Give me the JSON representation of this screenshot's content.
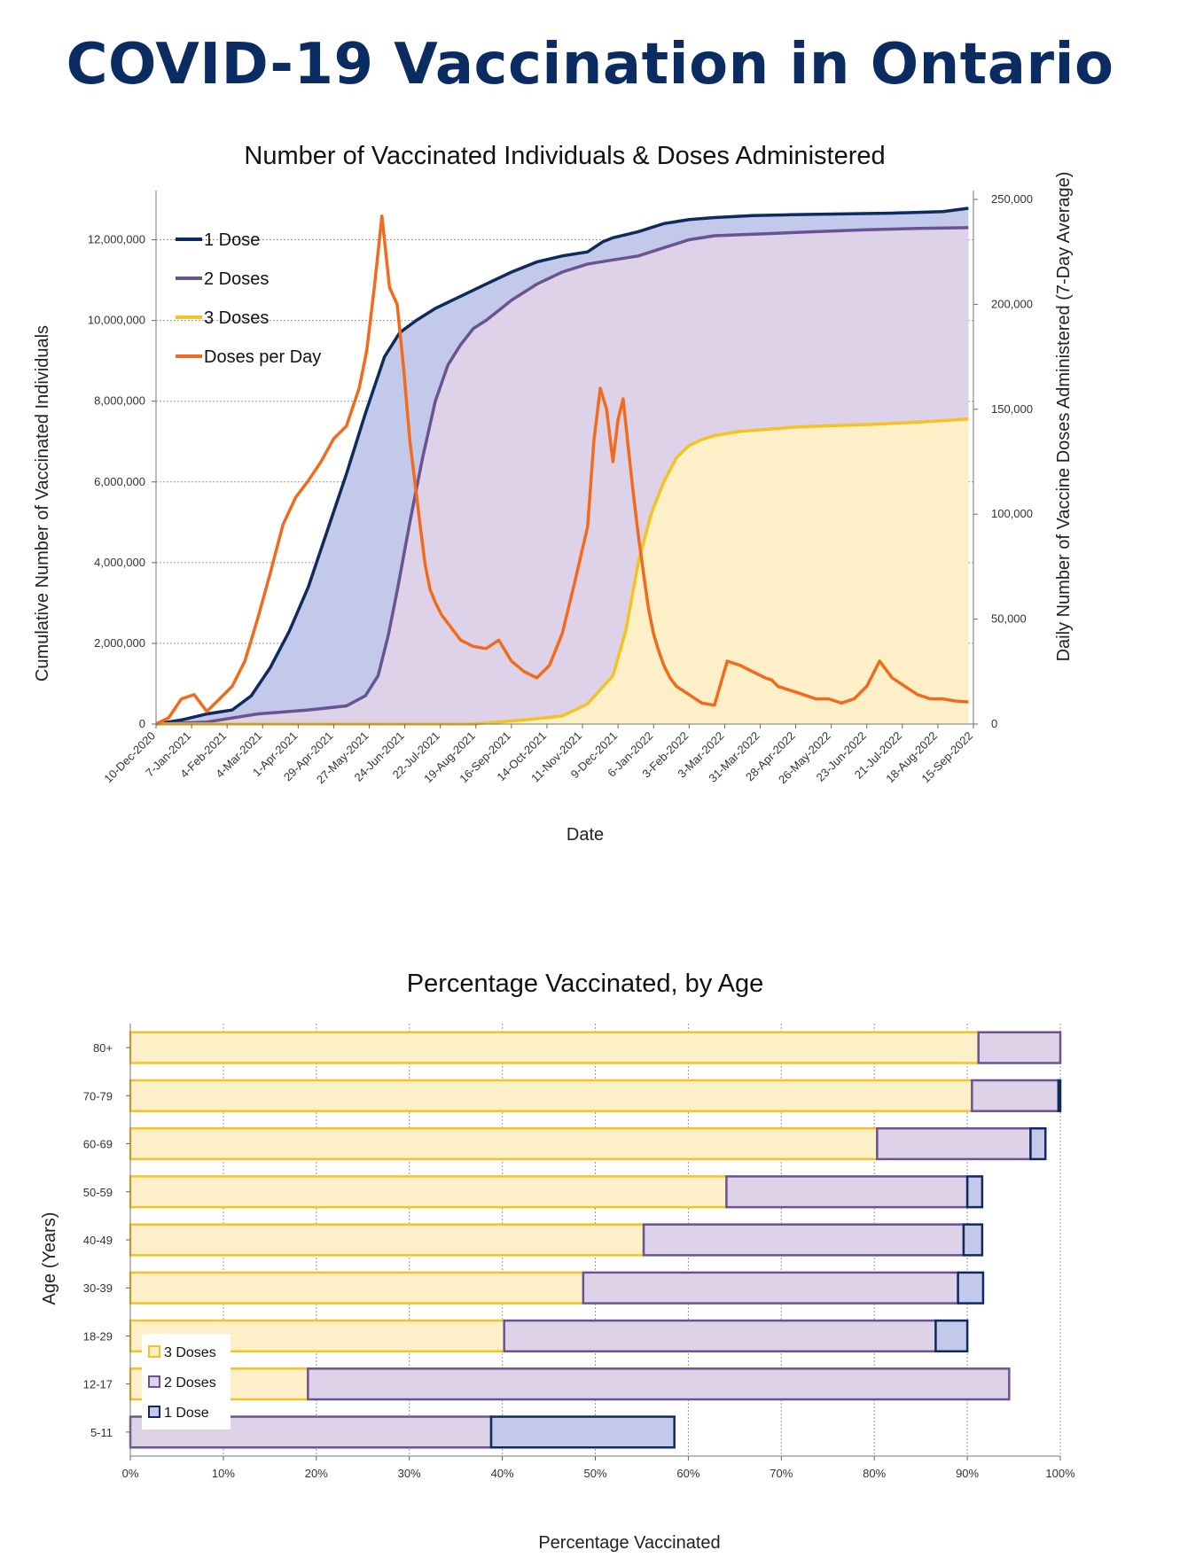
{
  "page": {
    "title": "COVID-19 Vaccination in Ontario"
  },
  "colors": {
    "dose1": "#0f2a5e",
    "dose1_fill": "#c2c9ea",
    "dose2": "#6b5391",
    "dose2_fill": "#ddd2e8",
    "dose3": "#f5c224",
    "dose3_fill": "#fdf0c8",
    "per_day": "#f26a1b",
    "title": "#0b2c63"
  },
  "chart_data": [
    {
      "type": "line",
      "title": "Number of Vaccinated Individuals & Doses Administered",
      "xlabel": "Date",
      "ylabel": "Cumulative Number of Vaccinated Individuals",
      "y2label": "Daily Number of Vaccine Doses Administered (7-Day Average)",
      "ylim": [
        0,
        13000000
      ],
      "y2lim": [
        0,
        250000
      ],
      "yticks": [
        0,
        2000000,
        4000000,
        6000000,
        8000000,
        10000000,
        12000000
      ],
      "yticklabels": [
        "0",
        "2,000,000",
        "4,000,000",
        "6,000,000",
        "8,000,000",
        "10,000,000",
        "12,000,000"
      ],
      "y2ticks": [
        0,
        50000,
        100000,
        150000,
        200000,
        250000
      ],
      "y2ticklabels": [
        "0",
        "50,000",
        "100,000",
        "150,000",
        "200,000",
        "250,000"
      ],
      "xlim": [
        0,
        644
      ],
      "xticks": [
        0,
        28,
        56,
        84,
        112,
        140,
        168,
        196,
        224,
        252,
        280,
        308,
        336,
        364,
        392,
        420,
        448,
        476,
        504,
        532,
        560,
        588,
        616,
        644
      ],
      "xticklabels": [
        "10-Dec-2020",
        "7-Jan-2021",
        "4-Feb-2021",
        "4-Mar-2021",
        "1-Apr-2021",
        "29-Apr-2021",
        "27-May-2021",
        "24-Jun-2021",
        "22-Jul-2021",
        "19-Aug-2021",
        "16-Sep-2021",
        "14-Oct-2021",
        "11-Nov-2021",
        "9-Dec-2021",
        "6-Jan-2022",
        "3-Feb-2022",
        "3-Mar-2022",
        "31-Mar-2022",
        "28-Apr-2022",
        "26-May-2022",
        "23-Jun-2022",
        "21-Jul-2022",
        "18-Aug-2022",
        "15-Sep-2022"
      ],
      "legend": [
        "1 Dose",
        "2 Doses",
        "3 Doses",
        "Doses per Day"
      ],
      "series": [
        {
          "name": "1 Dose",
          "axis": "left",
          "x": [
            0,
            20,
            40,
            60,
            75,
            90,
            105,
            120,
            135,
            150,
            165,
            180,
            192,
            205,
            220,
            240,
            260,
            280,
            300,
            320,
            340,
            352,
            360,
            380,
            400,
            420,
            440,
            470,
            500,
            540,
            580,
            620,
            640
          ],
          "values": [
            0,
            100000,
            250000,
            350000,
            700000,
            1400000,
            2300000,
            3400000,
            4800000,
            6200000,
            7700000,
            9100000,
            9700000,
            10000000,
            10300000,
            10600000,
            10900000,
            11200000,
            11450000,
            11600000,
            11700000,
            11950000,
            12050000,
            12200000,
            12400000,
            12500000,
            12550000,
            12600000,
            12620000,
            12640000,
            12660000,
            12700000,
            12780000
          ]
        },
        {
          "name": "2 Doses",
          "axis": "left",
          "x": [
            0,
            40,
            80,
            120,
            150,
            165,
            175,
            183,
            190,
            200,
            210,
            220,
            230,
            240,
            250,
            260,
            270,
            280,
            300,
            320,
            340,
            360,
            380,
            400,
            420,
            440,
            480,
            520,
            560,
            600,
            640
          ],
          "values": [
            0,
            50000,
            250000,
            350000,
            450000,
            700000,
            1200000,
            2200000,
            3300000,
            5000000,
            6600000,
            8000000,
            8900000,
            9400000,
            9800000,
            10000000,
            10250000,
            10500000,
            10900000,
            11200000,
            11400000,
            11500000,
            11600000,
            11800000,
            12000000,
            12100000,
            12150000,
            12200000,
            12250000,
            12280000,
            12300000
          ]
        },
        {
          "name": "3 Doses",
          "axis": "left",
          "x": [
            0,
            250,
            290,
            320,
            340,
            360,
            370,
            380,
            390,
            400,
            410,
            420,
            430,
            440,
            450,
            460,
            480,
            500,
            520,
            540,
            560,
            580,
            600,
            620,
            640
          ],
          "values": [
            0,
            0,
            100000,
            200000,
            500000,
            1200000,
            2300000,
            4000000,
            5200000,
            6000000,
            6600000,
            6900000,
            7050000,
            7150000,
            7200000,
            7250000,
            7300000,
            7350000,
            7380000,
            7400000,
            7420000,
            7450000,
            7480000,
            7520000,
            7560000
          ]
        },
        {
          "name": "Doses per Day",
          "axis": "right",
          "x": [
            0,
            10,
            20,
            30,
            40,
            50,
            60,
            70,
            80,
            90,
            100,
            110,
            120,
            130,
            140,
            150,
            160,
            166,
            172,
            178,
            184,
            190,
            195,
            200,
            204,
            208,
            212,
            216,
            220,
            225,
            230,
            240,
            250,
            260,
            270,
            280,
            290,
            300,
            310,
            320,
            330,
            340,
            345,
            350,
            355,
            360,
            364,
            368,
            372,
            376,
            380,
            384,
            388,
            392,
            396,
            400,
            405,
            410,
            420,
            430,
            440,
            450,
            460,
            470,
            480,
            485,
            490,
            500,
            510,
            520,
            530,
            540,
            550,
            560,
            570,
            580,
            590,
            595,
            600,
            605,
            610,
            620,
            630,
            640
          ],
          "values": [
            0,
            3000,
            12000,
            14000,
            6000,
            12000,
            18000,
            30000,
            50000,
            72000,
            95000,
            108000,
            116000,
            125000,
            136000,
            142000,
            160000,
            178000,
            208000,
            242000,
            208000,
            200000,
            170000,
            135000,
            115000,
            95000,
            76000,
            64000,
            58000,
            52000,
            48000,
            40000,
            37000,
            36000,
            40000,
            30000,
            25000,
            22000,
            28000,
            43000,
            68000,
            94000,
            135000,
            160000,
            150000,
            125000,
            145000,
            155000,
            132000,
            110000,
            90000,
            72000,
            55000,
            43000,
            35000,
            28000,
            22000,
            18000,
            14000,
            10000,
            9000,
            30000,
            28000,
            25000,
            22000,
            21000,
            18000,
            16000,
            14000,
            12000,
            12000,
            10000,
            12000,
            18000,
            30000,
            22000,
            18000,
            16000,
            14000,
            13000,
            12000,
            12000,
            11000,
            10500
          ]
        }
      ]
    },
    {
      "type": "bar",
      "orientation": "horizontal",
      "stacked": true,
      "title": "Percentage Vaccinated, by Age",
      "xlabel": "Percentage Vaccinated",
      "ylabel": "Age (Years)",
      "xlim": [
        0,
        100
      ],
      "xticks": [
        0,
        10,
        20,
        30,
        40,
        50,
        60,
        70,
        80,
        90,
        100
      ],
      "xticklabels": [
        "0%",
        "10%",
        "20%",
        "30%",
        "40%",
        "50%",
        "60%",
        "70%",
        "80%",
        "90%",
        "100%"
      ],
      "categories": [
        "80+",
        "70-79",
        "60-69",
        "50-59",
        "40-49",
        "30-39",
        "18-29",
        "12-17",
        "5-11"
      ],
      "legend": [
        "3 Doses",
        "2 Doses",
        "1 Dose"
      ],
      "series": [
        {
          "name": "3 Doses",
          "values": [
            91.2,
            90.5,
            80.3,
            64.1,
            55.2,
            48.7,
            40.2,
            19.1,
            0
          ]
        },
        {
          "name": "2 Doses",
          "values": [
            8.8,
            9.3,
            16.5,
            25.9,
            34.4,
            40.3,
            46.4,
            75.4,
            38.8
          ]
        },
        {
          "name": "1 Dose",
          "values": [
            0,
            0.2,
            1.6,
            1.6,
            2.0,
            2.7,
            3.4,
            0,
            19.7
          ]
        }
      ]
    }
  ]
}
